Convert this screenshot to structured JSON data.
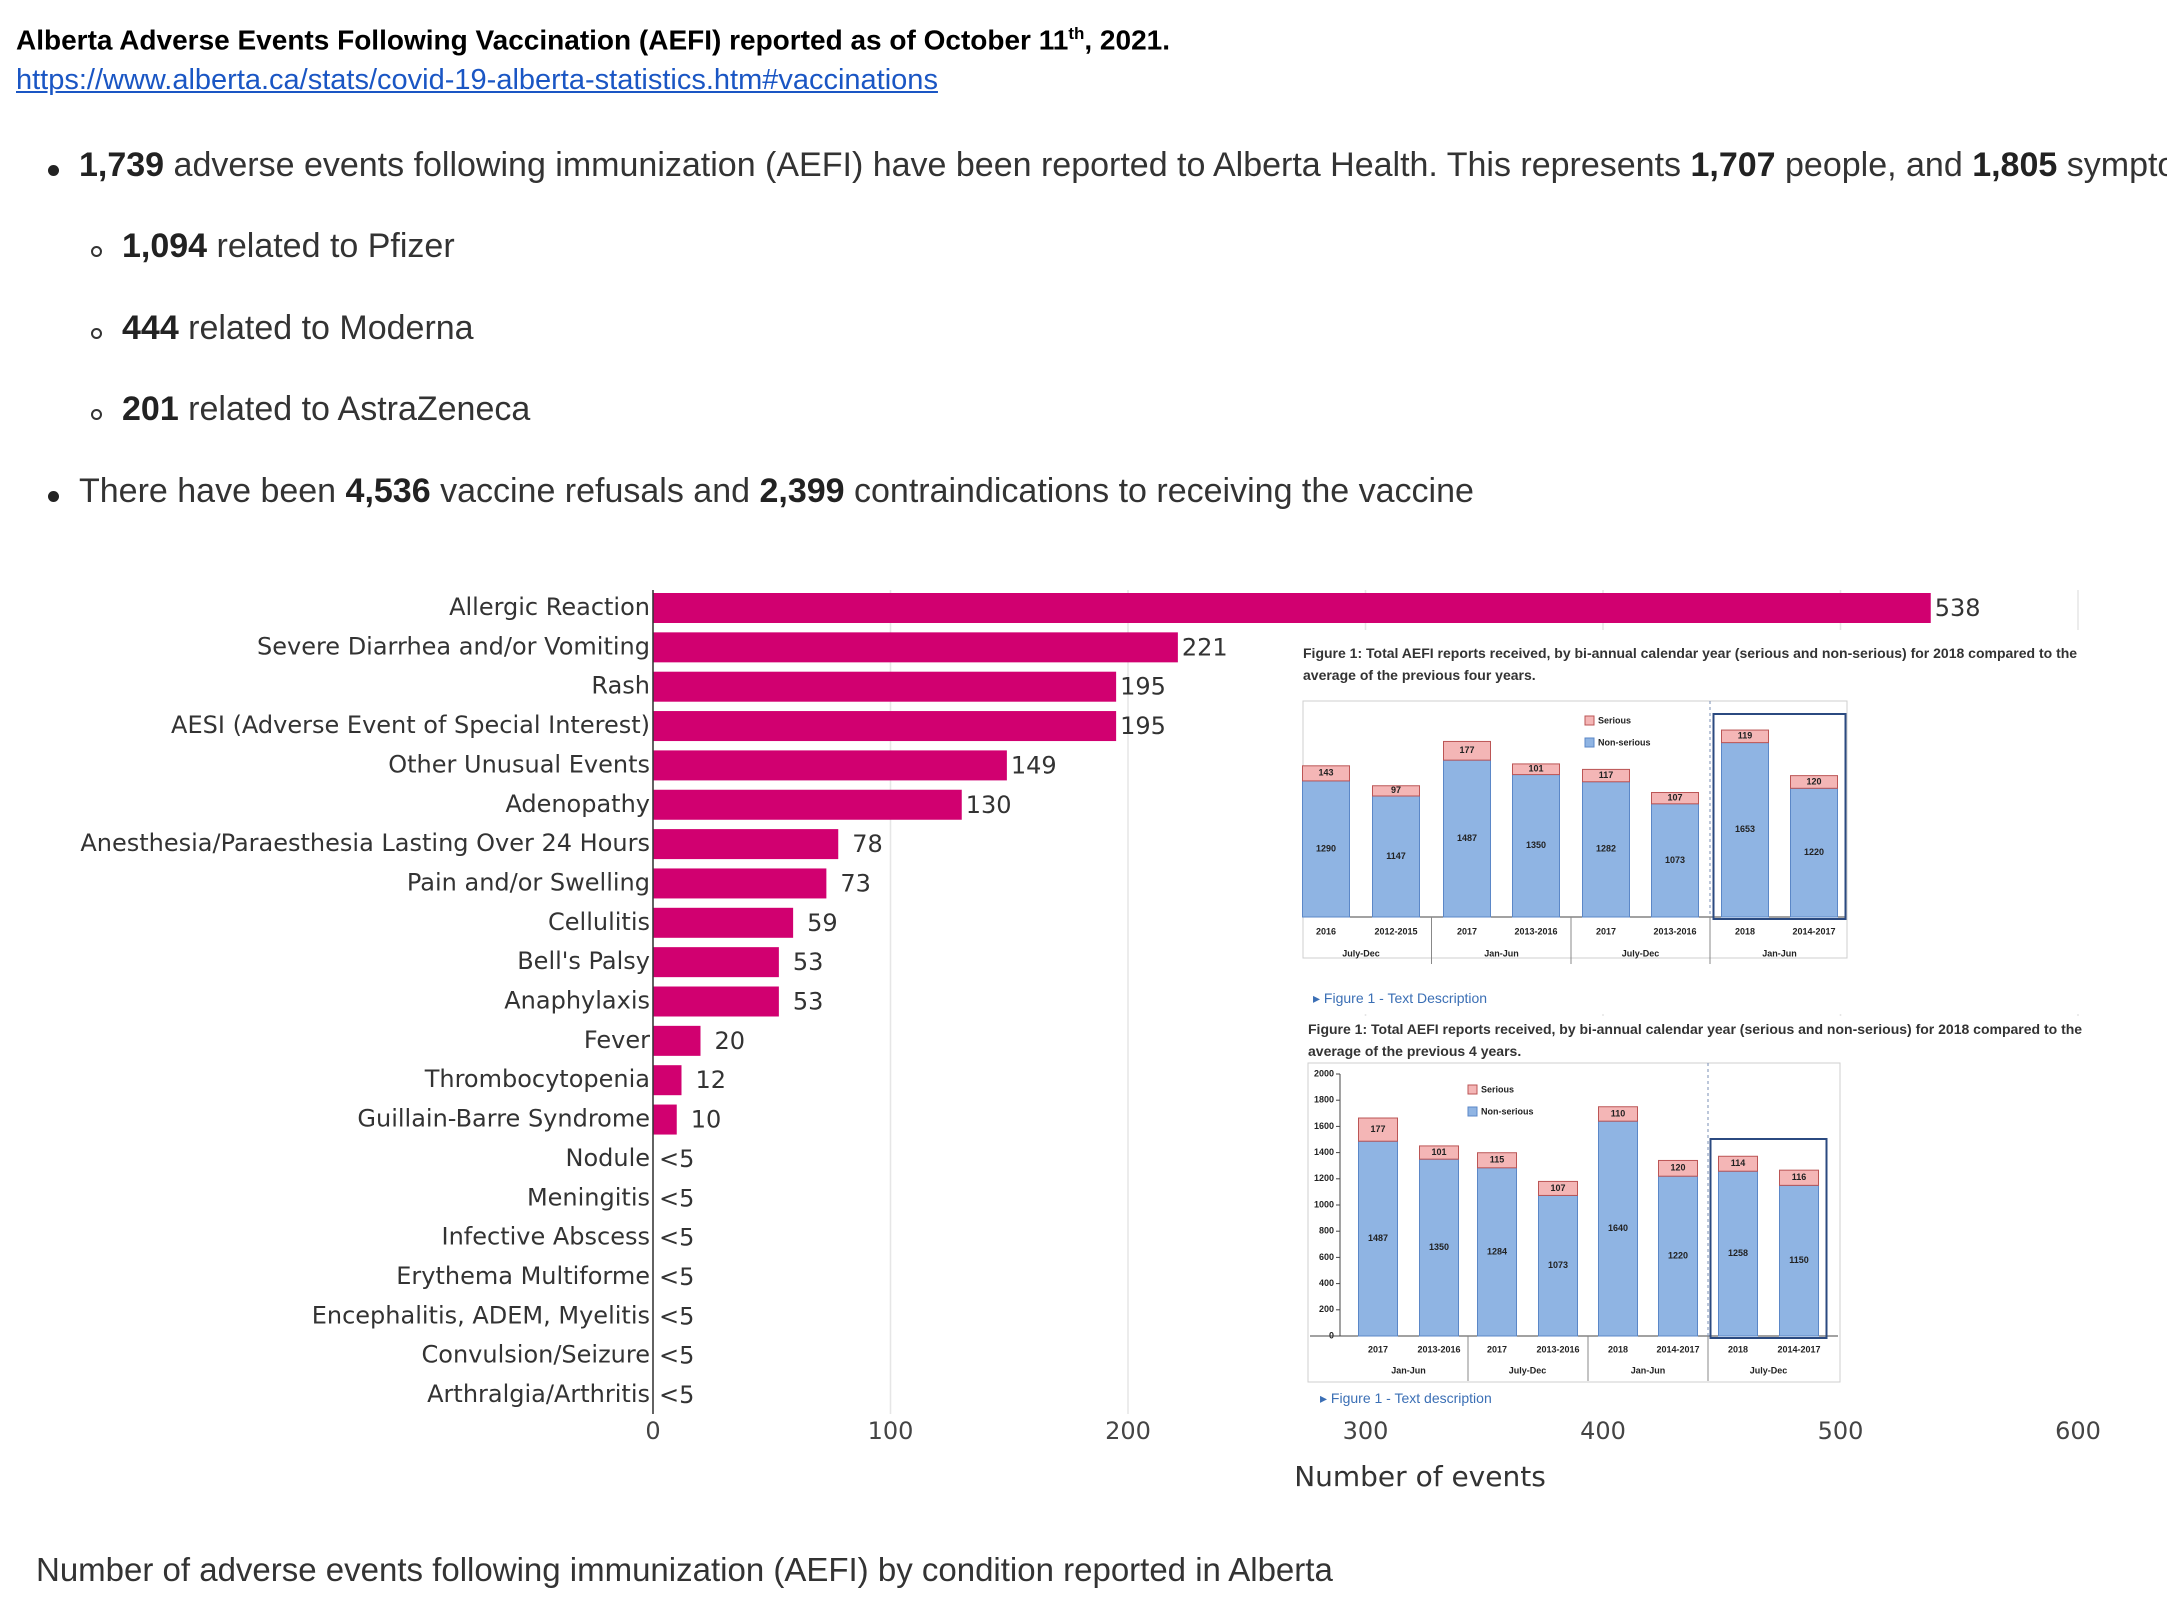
{
  "header": {
    "title": [
      "Alberta Adverse Events Following Vaccination (AEFI) reported as of October 11",
      "th",
      ", 2021."
    ],
    "link": "https://www.alberta.ca/stats/covid-19-alberta-statistics.htm#vaccinations"
  },
  "bullets": [
    {
      "level": 1,
      "runs": [
        {
          "text": "1,739",
          "bold": true
        },
        {
          "text": " adverse events following immunization (AEFI) have been reported to Alberta Health. This represents "
        },
        {
          "text": "1,707",
          "bold": true
        },
        {
          "text": " people, and "
        },
        {
          "text": "1,805",
          "bold": true
        },
        {
          "text": " symptoms."
        }
      ]
    },
    {
      "level": 2,
      "runs": [
        {
          "text": "1,094",
          "bold": true
        },
        {
          "text": " related to Pfizer"
        }
      ]
    },
    {
      "level": 2,
      "runs": [
        {
          "text": "444",
          "bold": true
        },
        {
          "text": " related to Moderna"
        }
      ]
    },
    {
      "level": 2,
      "runs": [
        {
          "text": "201",
          "bold": true
        },
        {
          "text": " related to AstraZeneca"
        }
      ]
    },
    {
      "level": 1,
      "runs": [
        {
          "text": "There have been "
        },
        {
          "text": "4,536",
          "bold": true
        },
        {
          "text": " vaccine refusals and "
        },
        {
          "text": "2,399",
          "bold": true
        },
        {
          "text": " contraindications to receiving the vaccine"
        }
      ]
    }
  ],
  "chart_data": [
    {
      "type": "hbar",
      "categories": [
        "Allergic Reaction",
        "Severe Diarrhea and/or Vomiting",
        "Rash",
        "AESI (Adverse Event of Special Interest)",
        "Other Unusual Events",
        "Adenopathy",
        "Anesthesia/Paraesthesia Lasting Over 24 Hours",
        "Pain and/or Swelling",
        "Cellulitis",
        "Bell's Palsy",
        "Anaphylaxis",
        "Fever",
        "Thrombocytopenia",
        "Guillain-Barre Syndrome",
        "Nodule",
        "Meningitis",
        "Infective Abscess",
        "Erythema Multiforme",
        "Encephalitis, ADEM, Myelitis",
        "Convulsion/Seizure",
        "Arthralgia/Arthritis"
      ],
      "values": [
        538,
        221,
        195,
        195,
        149,
        130,
        78,
        73,
        59,
        53,
        53,
        20,
        12,
        10,
        null,
        null,
        null,
        null,
        null,
        null,
        null
      ],
      "value_labels": [
        null,
        null,
        null,
        null,
        null,
        null,
        null,
        null,
        null,
        null,
        null,
        null,
        null,
        null,
        "<5",
        "<5",
        "<5",
        "<5",
        "<5",
        "<5",
        "<5"
      ],
      "color": "#d10070",
      "xlim": [
        0,
        600
      ],
      "xticks": [
        0,
        100,
        200,
        300,
        400,
        500,
        600
      ],
      "xlabel": "Number of events",
      "grid": true,
      "caption": "Number of adverse events following immunization (AEFI) by condition reported in Alberta"
    },
    {
      "type": "stacked_bar",
      "title": "Figure 1: Total AEFI reports received, by bi-annual calendar year (serious and non-serious) for 2018 compared to the average of the previous four years.",
      "categories": [
        "2016",
        "2012-2015",
        "2017",
        "2013-2016",
        "2017",
        "2013-2016",
        "2018",
        "2014-2017"
      ],
      "groups": [
        "July-Dec",
        "Jan-Jun",
        "July-Dec",
        "Jan-Jun"
      ],
      "series": [
        {
          "name": "Non-serious",
          "color": "#8fb4e3",
          "values": [
            1290,
            1147,
            1487,
            1350,
            1282,
            1073,
            1653,
            1220
          ]
        },
        {
          "name": "Serious",
          "color": "#f4b6b6",
          "values": [
            143,
            97,
            177,
            101,
            117,
            107,
            119,
            120
          ]
        }
      ],
      "ylim": [
        0,
        2000
      ],
      "link": "▸ Figure 1 - Text Description"
    },
    {
      "type": "stacked_bar",
      "title": "Figure 1: Total AEFI reports received, by bi-annual calendar year (serious and non-serious) for 2018 compared to the average of the previous 4 years.",
      "categories": [
        "2017",
        "2013-2016",
        "2017",
        "2013-2016",
        "2018",
        "2014-2017",
        "2018",
        "2014-2017"
      ],
      "groups": [
        "Jan-Jun",
        "July-Dec",
        "Jan-Jun",
        "July-Dec"
      ],
      "series": [
        {
          "name": "Non-serious",
          "color": "#8fb4e3",
          "values": [
            1487,
            1350,
            1284,
            1073,
            1640,
            1220,
            1258,
            1150
          ]
        },
        {
          "name": "Serious",
          "color": "#f4b6b6",
          "values": [
            177,
            101,
            115,
            107,
            110,
            120,
            114,
            116
          ]
        }
      ],
      "ylim": [
        0,
        2000
      ],
      "yticks": [
        0,
        200,
        400,
        600,
        800,
        1000,
        1200,
        1400,
        1600,
        1800,
        2000
      ],
      "link": "▸ Figure 1 - Text description"
    }
  ]
}
